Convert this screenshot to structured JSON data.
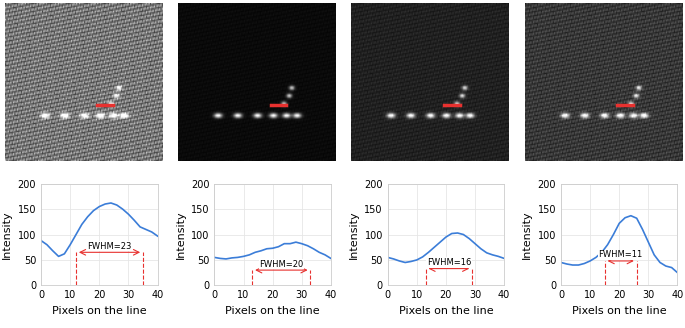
{
  "chart_data": [
    {
      "type": "line",
      "x_label": "Pixels on the line",
      "y_label": "Intensity",
      "xlim": [
        0,
        40
      ],
      "xticks": [
        0,
        10,
        20,
        30,
        40
      ],
      "ylim": [
        0,
        200
      ],
      "yticks": [
        0,
        50,
        100,
        150,
        200
      ],
      "grid": true,
      "series": [
        {
          "color": "#3b7dd8",
          "x": [
            0,
            2,
            4,
            6,
            8,
            10,
            12,
            14,
            16,
            18,
            20,
            22,
            24,
            26,
            28,
            30,
            32,
            34,
            36,
            38,
            40
          ],
          "values": [
            88,
            80,
            68,
            57,
            62,
            80,
            100,
            120,
            135,
            147,
            155,
            160,
            162,
            158,
            150,
            140,
            128,
            115,
            110,
            105,
            97
          ]
        }
      ],
      "annotation": {
        "text": "FWHM=23",
        "x_start": 12,
        "x_end": 35,
        "y": 65,
        "color": "#e8312f"
      }
    },
    {
      "type": "line",
      "x_label": "Pixels on the line",
      "y_label": "Intensity",
      "xlim": [
        0,
        40
      ],
      "xticks": [
        0,
        10,
        20,
        30,
        40
      ],
      "ylim": [
        0,
        200
      ],
      "yticks": [
        0,
        50,
        100,
        150,
        200
      ],
      "grid": true,
      "series": [
        {
          "color": "#3b7dd8",
          "x": [
            0,
            2,
            4,
            6,
            8,
            10,
            12,
            14,
            16,
            18,
            20,
            22,
            24,
            26,
            28,
            30,
            32,
            34,
            36,
            38,
            40
          ],
          "values": [
            55,
            53,
            52,
            54,
            55,
            57,
            60,
            65,
            68,
            72,
            73,
            76,
            82,
            82,
            85,
            82,
            78,
            72,
            65,
            60,
            53
          ]
        }
      ],
      "annotation": {
        "text": "FWHM=20",
        "x_start": 13,
        "x_end": 33,
        "y": 30,
        "color": "#e8312f"
      }
    },
    {
      "type": "line",
      "x_label": "Pixels on the line",
      "y_label": "Intensity",
      "xlim": [
        0,
        40
      ],
      "xticks": [
        0,
        10,
        20,
        30,
        40
      ],
      "ylim": [
        0,
        200
      ],
      "yticks": [
        0,
        50,
        100,
        150,
        200
      ],
      "grid": true,
      "series": [
        {
          "color": "#3b7dd8",
          "x": [
            0,
            2,
            4,
            6,
            8,
            10,
            12,
            14,
            16,
            18,
            20,
            22,
            24,
            26,
            28,
            30,
            32,
            34,
            36,
            38,
            40
          ],
          "values": [
            55,
            52,
            48,
            45,
            47,
            50,
            56,
            65,
            75,
            85,
            95,
            102,
            103,
            100,
            92,
            82,
            72,
            64,
            60,
            57,
            53
          ]
        }
      ],
      "annotation": {
        "text": "FWHM=16",
        "x_start": 13,
        "x_end": 29,
        "y": 33,
        "color": "#e8312f"
      }
    },
    {
      "type": "line",
      "x_label": "Pixels on the line",
      "y_label": "Intensity",
      "xlim": [
        0,
        40
      ],
      "xticks": [
        0,
        10,
        20,
        30,
        40
      ],
      "ylim": [
        0,
        200
      ],
      "yticks": [
        0,
        50,
        100,
        150,
        200
      ],
      "grid": true,
      "series": [
        {
          "color": "#3b7dd8",
          "x": [
            0,
            2,
            4,
            6,
            8,
            10,
            12,
            14,
            16,
            18,
            20,
            22,
            24,
            26,
            28,
            30,
            32,
            34,
            36,
            38,
            40
          ],
          "values": [
            45,
            42,
            40,
            40,
            43,
            48,
            55,
            65,
            80,
            100,
            122,
            133,
            137,
            132,
            110,
            85,
            60,
            45,
            38,
            35,
            25
          ]
        }
      ],
      "annotation": {
        "text": "FWHM=11",
        "x_start": 15,
        "x_end": 26,
        "y": 48,
        "color": "#e8312f"
      }
    }
  ]
}
